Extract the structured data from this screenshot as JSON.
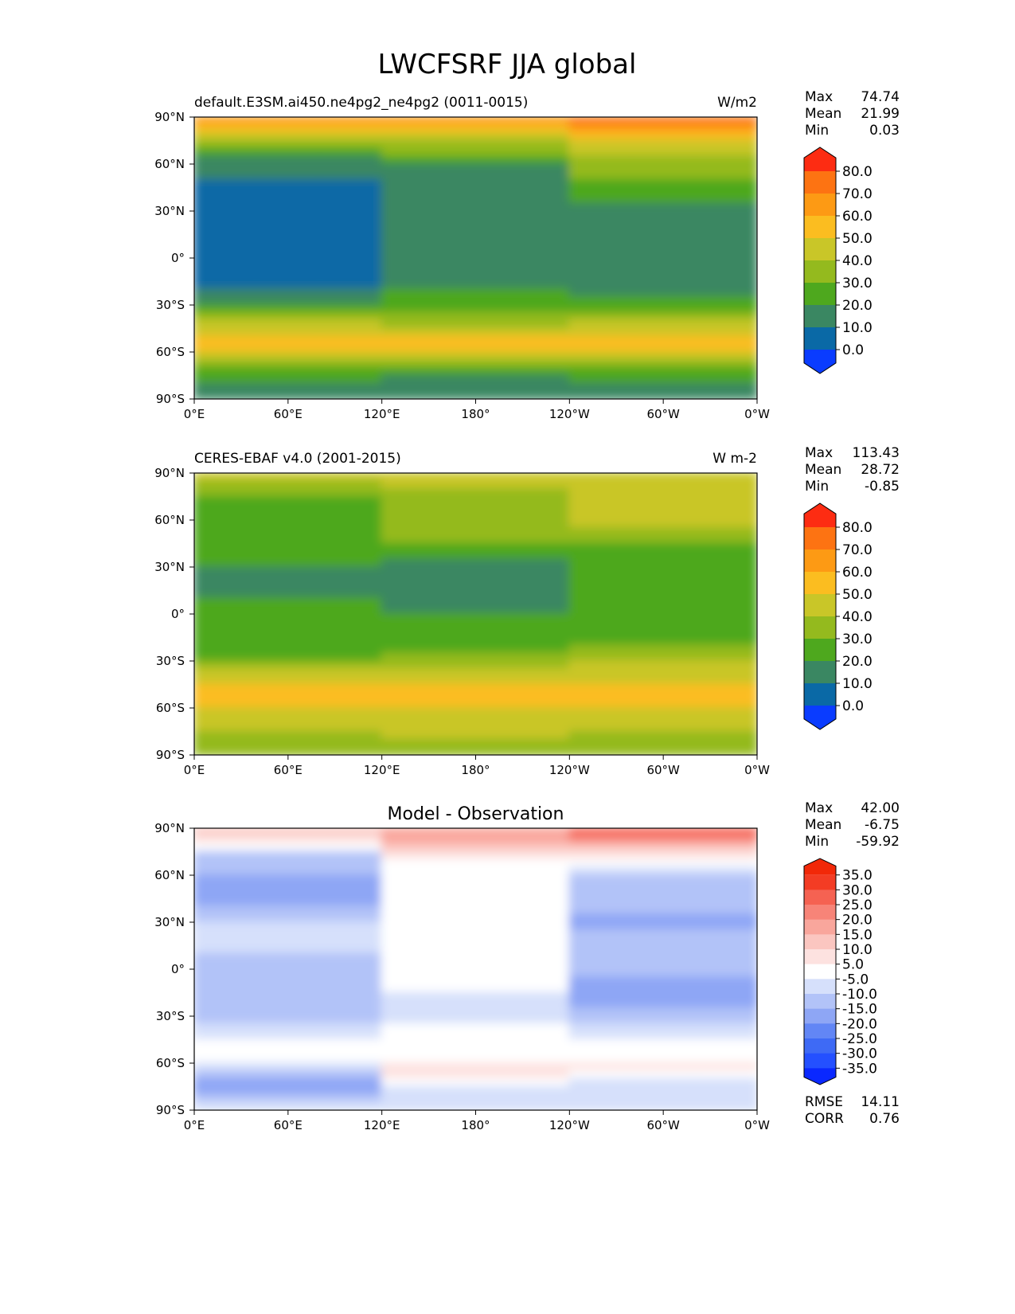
{
  "figure": {
    "title": "LWCFSRF JJA global"
  },
  "axes": {
    "x_ticks": [
      "0°E",
      "60°E",
      "120°E",
      "180°",
      "120°W",
      "60°W",
      "0°W"
    ],
    "y_ticks": [
      "90°N",
      "60°N",
      "30°N",
      "0°",
      "30°S",
      "60°S",
      "90°S"
    ]
  },
  "labels": {
    "max": "Max",
    "mean": "Mean",
    "min": "Min",
    "rmse": "RMSE",
    "corr": "CORR"
  },
  "chart_data": [
    {
      "type": "heatmap",
      "panel": "test",
      "title_left": "default.E3SM.ai450.ne4pg2_ne4pg2 (0011-0015)",
      "title_center": "",
      "units": "W/m2",
      "stats": {
        "max": "74.74",
        "mean": "21.99",
        "min": "0.03"
      },
      "xlim": [
        0,
        360
      ],
      "ylim": [
        -90,
        90
      ],
      "colorbar": {
        "levels": [
          0,
          10,
          20,
          30,
          40,
          50,
          60,
          70,
          80
        ],
        "tick_labels": [
          "80.0",
          "70.0",
          "60.0",
          "50.0",
          "40.0",
          "30.0",
          "20.0",
          "10.0",
          "0.0"
        ],
        "colors": [
          "#0a3cff",
          "#0a69a6",
          "#3a8762",
          "#4ea81e",
          "#94ba1e",
          "#c9c628",
          "#fbbd20",
          "#fd9a14",
          "#fd7312",
          "#fd2c12"
        ],
        "extend": "both"
      },
      "lat_profile": [
        {
          "lat": 85,
          "values": [
            60,
            64,
            70
          ]
        },
        {
          "lat": 75,
          "values": [
            38,
            40,
            52
          ]
        },
        {
          "lat": 60,
          "values": [
            15,
            20,
            36
          ]
        },
        {
          "lat": 45,
          "values": [
            8,
            17,
            28
          ]
        },
        {
          "lat": 30,
          "values": [
            6,
            14,
            18
          ]
        },
        {
          "lat": 15,
          "values": [
            5,
            12,
            14
          ]
        },
        {
          "lat": 0,
          "values": [
            6,
            15,
            12
          ]
        },
        {
          "lat": -15,
          "values": [
            8,
            18,
            14
          ]
        },
        {
          "lat": -30,
          "values": [
            15,
            22,
            22
          ]
        },
        {
          "lat": -45,
          "values": [
            45,
            40,
            44
          ]
        },
        {
          "lat": -55,
          "values": [
            62,
            56,
            60
          ]
        },
        {
          "lat": -65,
          "values": [
            42,
            38,
            44
          ]
        },
        {
          "lat": -75,
          "values": [
            22,
            20,
            22
          ]
        },
        {
          "lat": -85,
          "values": [
            15,
            12,
            16
          ]
        }
      ]
    },
    {
      "type": "heatmap",
      "panel": "reference",
      "title_left": "CERES-EBAF v4.0 (2001-2015)",
      "title_center": "",
      "units": "W m-2",
      "stats": {
        "max": "113.43",
        "mean": "28.72",
        "min": "-0.85"
      },
      "xlim": [
        0,
        360
      ],
      "ylim": [
        -90,
        90
      ],
      "colorbar": {
        "levels": [
          0,
          10,
          20,
          30,
          40,
          50,
          60,
          70,
          80
        ],
        "tick_labels": [
          "80.0",
          "70.0",
          "60.0",
          "50.0",
          "40.0",
          "30.0",
          "20.0",
          "10.0",
          "0.0"
        ],
        "colors": [
          "#0a3cff",
          "#0a69a6",
          "#3a8762",
          "#4ea81e",
          "#94ba1e",
          "#c9c628",
          "#fbbd20",
          "#fd9a14",
          "#fd7312",
          "#fd2c12"
        ],
        "extend": "both"
      },
      "lat_profile": [
        {
          "lat": 85,
          "values": [
            40,
            42,
            44
          ]
        },
        {
          "lat": 75,
          "values": [
            30,
            36,
            46
          ]
        },
        {
          "lat": 60,
          "values": [
            28,
            38,
            42
          ]
        },
        {
          "lat": 45,
          "values": [
            25,
            32,
            30
          ]
        },
        {
          "lat": 30,
          "values": [
            20,
            15,
            20
          ]
        },
        {
          "lat": 15,
          "values": [
            18,
            18,
            22
          ]
        },
        {
          "lat": 0,
          "values": [
            22,
            20,
            25
          ]
        },
        {
          "lat": -15,
          "values": [
            20,
            22,
            28
          ]
        },
        {
          "lat": -30,
          "values": [
            30,
            32,
            38
          ]
        },
        {
          "lat": -45,
          "values": [
            52,
            50,
            52
          ]
        },
        {
          "lat": -55,
          "values": [
            55,
            54,
            56
          ]
        },
        {
          "lat": -65,
          "values": [
            48,
            44,
            46
          ]
        },
        {
          "lat": -75,
          "values": [
            40,
            42,
            40
          ]
        },
        {
          "lat": -85,
          "values": [
            32,
            34,
            32
          ]
        }
      ]
    },
    {
      "type": "heatmap",
      "panel": "difference",
      "title_left": "",
      "title_center": "Model - Observation",
      "units": "",
      "stats": {
        "max": "42.00",
        "mean": "-6.75",
        "min": "-59.92"
      },
      "metrics": {
        "rmse": "14.11",
        "corr": "0.76"
      },
      "xlim": [
        0,
        360
      ],
      "ylim": [
        -90,
        90
      ],
      "colorbar": {
        "levels": [
          -35,
          -30,
          -25,
          -20,
          -15,
          -10,
          -5,
          5,
          10,
          15,
          20,
          25,
          30,
          35
        ],
        "tick_labels": [
          "35.0",
          "30.0",
          "25.0",
          "20.0",
          "15.0",
          "10.0",
          "5.0",
          "-5.0",
          "-10.0",
          "-15.0",
          "-20.0",
          "-25.0",
          "-30.0",
          "-35.0"
        ],
        "colors": [
          "#0a28ff",
          "#2450ff",
          "#3e6af5",
          "#6286f5",
          "#8ea6f5",
          "#b2c3f8",
          "#d6e0fb",
          "#ffffff",
          "#fde2e0",
          "#fbc6c0",
          "#f9a69c",
          "#f78478",
          "#f56252",
          "#f33c24",
          "#f22808"
        ],
        "extend": "both"
      },
      "lat_profile": [
        {
          "lat": 85,
          "values": [
            12,
            18,
            25
          ]
        },
        {
          "lat": 75,
          "values": [
            -10,
            8,
            10
          ]
        },
        {
          "lat": 60,
          "values": [
            -15,
            0,
            -10
          ]
        },
        {
          "lat": 45,
          "values": [
            -18,
            -2,
            -12
          ]
        },
        {
          "lat": 30,
          "values": [
            -10,
            0,
            -18
          ]
        },
        {
          "lat": 15,
          "values": [
            -8,
            0,
            -10
          ]
        },
        {
          "lat": 0,
          "values": [
            -14,
            0,
            -12
          ]
        },
        {
          "lat": -15,
          "values": [
            -12,
            -6,
            -20
          ]
        },
        {
          "lat": -30,
          "values": [
            -12,
            -8,
            -14
          ]
        },
        {
          "lat": -45,
          "values": [
            -4,
            0,
            -4
          ]
        },
        {
          "lat": -55,
          "values": [
            6,
            2,
            4
          ]
        },
        {
          "lat": -65,
          "values": [
            -10,
            8,
            6
          ]
        },
        {
          "lat": -75,
          "values": [
            -20,
            -4,
            -10
          ]
        },
        {
          "lat": -85,
          "values": [
            -8,
            -10,
            -6
          ]
        }
      ]
    }
  ]
}
